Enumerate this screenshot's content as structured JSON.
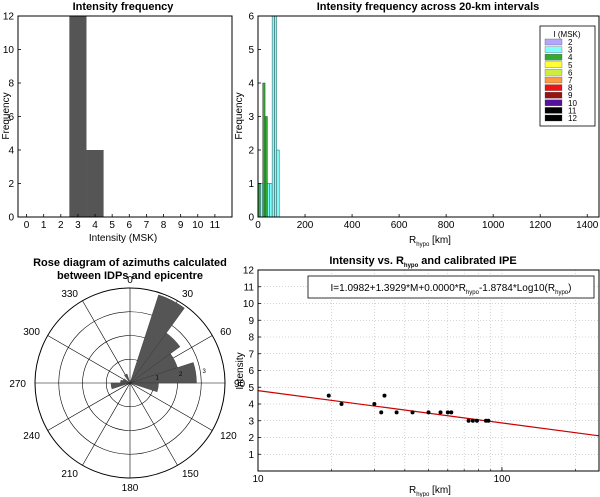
{
  "chart_data": [
    {
      "id": "hist",
      "type": "bar",
      "title": "Intensity frequency",
      "xlabel": "Intensity (MSK)",
      "ylabel": "Frequency",
      "categories": [
        "0",
        "1",
        "2",
        "3",
        "4",
        "5",
        "6",
        "7",
        "8",
        "9",
        "10",
        "11"
      ],
      "values": [
        0,
        0,
        0,
        12,
        4,
        0,
        0,
        0,
        0,
        0,
        0,
        0
      ],
      "xlim": [
        -0.5,
        12
      ],
      "ylim": [
        0,
        12
      ],
      "yticks": [
        0,
        2,
        4,
        6,
        8,
        10,
        12
      ],
      "bar_color": "#555555"
    },
    {
      "id": "dist",
      "type": "bar",
      "title": "Intensity frequency across 20-km intervals",
      "xlabel_main": "R",
      "xlabel_sub": "hypo",
      "xlabel_unit": " [km]",
      "ylabel": "Frequency",
      "xlim": [
        0,
        1450
      ],
      "ylim": [
        0,
        6
      ],
      "xticks": [
        0,
        200,
        400,
        600,
        800,
        1000,
        1200,
        1400
      ],
      "yticks": [
        0,
        1,
        2,
        3,
        4,
        5,
        6
      ],
      "legend_title": "I (MSK)",
      "legend_placement": "top-right",
      "legend": [
        {
          "label": "2",
          "color": "#b2a6ff"
        },
        {
          "label": "3",
          "color": "#80ffff"
        },
        {
          "label": "4",
          "color": "#33aa33"
        },
        {
          "label": "5",
          "color": "#ffff33"
        },
        {
          "label": "6",
          "color": "#ccee44"
        },
        {
          "label": "7",
          "color": "#ff9944"
        },
        {
          "label": "8",
          "color": "#ee1111"
        },
        {
          "label": "9",
          "color": "#991111"
        },
        {
          "label": "10",
          "color": "#551199"
        },
        {
          "label": "11",
          "color": "#000000"
        },
        {
          "label": "12",
          "color": "#000000"
        }
      ],
      "bars": [
        {
          "x0": 0,
          "x1": 10,
          "count": 1,
          "intensity": "4"
        },
        {
          "x0": 10,
          "x1": 20,
          "count": 1,
          "intensity": "3"
        },
        {
          "x0": 20,
          "x1": 30,
          "count": 4,
          "intensity": "4"
        },
        {
          "x0": 30,
          "x1": 40,
          "count": 3,
          "intensity": "4"
        },
        {
          "x0": 40,
          "x1": 50,
          "count": 1,
          "intensity": "3"
        },
        {
          "x0": 50,
          "x1": 60,
          "count": 1,
          "intensity": "3"
        },
        {
          "x0": 60,
          "x1": 70,
          "count": 6,
          "intensity": "3"
        },
        {
          "x0": 70,
          "x1": 80,
          "count": 6,
          "intensity": "3"
        },
        {
          "x0": 80,
          "x1": 90,
          "count": 2,
          "intensity": "3"
        }
      ]
    },
    {
      "id": "rose",
      "type": "rose",
      "title_line1": "Rose diagram of azimuths calculated",
      "title_line2": "between  IDPs and epicentre",
      "angle_labels": [
        {
          "deg": 0,
          "label": "0"
        },
        {
          "deg": 30,
          "label": "30"
        },
        {
          "deg": 60,
          "label": "60"
        },
        {
          "deg": 90,
          "label": "90"
        },
        {
          "deg": 120,
          "label": "120"
        },
        {
          "deg": 150,
          "label": "150"
        },
        {
          "deg": 180,
          "label": "180"
        },
        {
          "deg": 210,
          "label": "210"
        },
        {
          "deg": 240,
          "label": "240"
        },
        {
          "deg": 270,
          "label": "270"
        },
        {
          "deg": 300,
          "label": "300"
        },
        {
          "deg": 330,
          "label": "330"
        }
      ],
      "r_max": 4,
      "r_ticks": [
        {
          "r": 1,
          "label": "1"
        },
        {
          "r": 2,
          "label": "2"
        },
        {
          "r": 3,
          "label": "3"
        }
      ],
      "sectors": [
        {
          "from": 18,
          "to": 36,
          "count": 3.9
        },
        {
          "from": 36,
          "to": 54,
          "count": 2.6
        },
        {
          "from": 54,
          "to": 72,
          "count": 2.1
        },
        {
          "from": 72,
          "to": 90,
          "count": 2.8
        },
        {
          "from": 90,
          "to": 108,
          "count": 1.2
        },
        {
          "from": 252,
          "to": 270,
          "count": 0.8
        },
        {
          "from": 270,
          "to": 288,
          "count": 0.4
        },
        {
          "from": 288,
          "to": 306,
          "count": 0.3
        },
        {
          "from": 324,
          "to": 342,
          "count": 0.4
        }
      ],
      "fill": "#555555"
    },
    {
      "id": "ipe",
      "type": "scatter",
      "title_main": "Intensity vs. R",
      "title_sub": "hypo",
      "title_tail": " and calibrated IPE",
      "xlabel_main": "R",
      "xlabel_sub": "hypo",
      "xlabel_unit": " [km]",
      "ylabel": "Intensity",
      "xscale": "log",
      "xlim": [
        10,
        250
      ],
      "ylim": [
        0,
        12
      ],
      "xticks": [
        {
          "v": 10,
          "label": "10"
        },
        {
          "v": 100,
          "label": "100"
        }
      ],
      "yticks": [
        1,
        2,
        3,
        4,
        5,
        6,
        7,
        8,
        9,
        10,
        11,
        12
      ],
      "grid": true,
      "equation": {
        "p1": "I=1.0982+1.3929*M+0.0000*R",
        "s1": "hypo",
        "p2": "-1.8784*Log10(R",
        "s2": "hypo",
        "p3": ")"
      },
      "points": [
        {
          "x": 19.5,
          "y": 4.5
        },
        {
          "x": 22,
          "y": 4.0
        },
        {
          "x": 30,
          "y": 4.0
        },
        {
          "x": 32,
          "y": 3.5
        },
        {
          "x": 33,
          "y": 4.5
        },
        {
          "x": 37,
          "y": 3.5
        },
        {
          "x": 43,
          "y": 3.5
        },
        {
          "x": 50,
          "y": 3.5
        },
        {
          "x": 56,
          "y": 3.5
        },
        {
          "x": 60,
          "y": 3.5
        },
        {
          "x": 62,
          "y": 3.5
        },
        {
          "x": 73,
          "y": 3.0
        },
        {
          "x": 76,
          "y": 3.0
        },
        {
          "x": 79,
          "y": 3.0
        },
        {
          "x": 86,
          "y": 3.0
        },
        {
          "x": 88,
          "y": 3.0
        }
      ],
      "line": {
        "color": "#cc0000",
        "x": [
          10,
          250
        ],
        "y": [
          4.8,
          2.1
        ]
      }
    }
  ]
}
